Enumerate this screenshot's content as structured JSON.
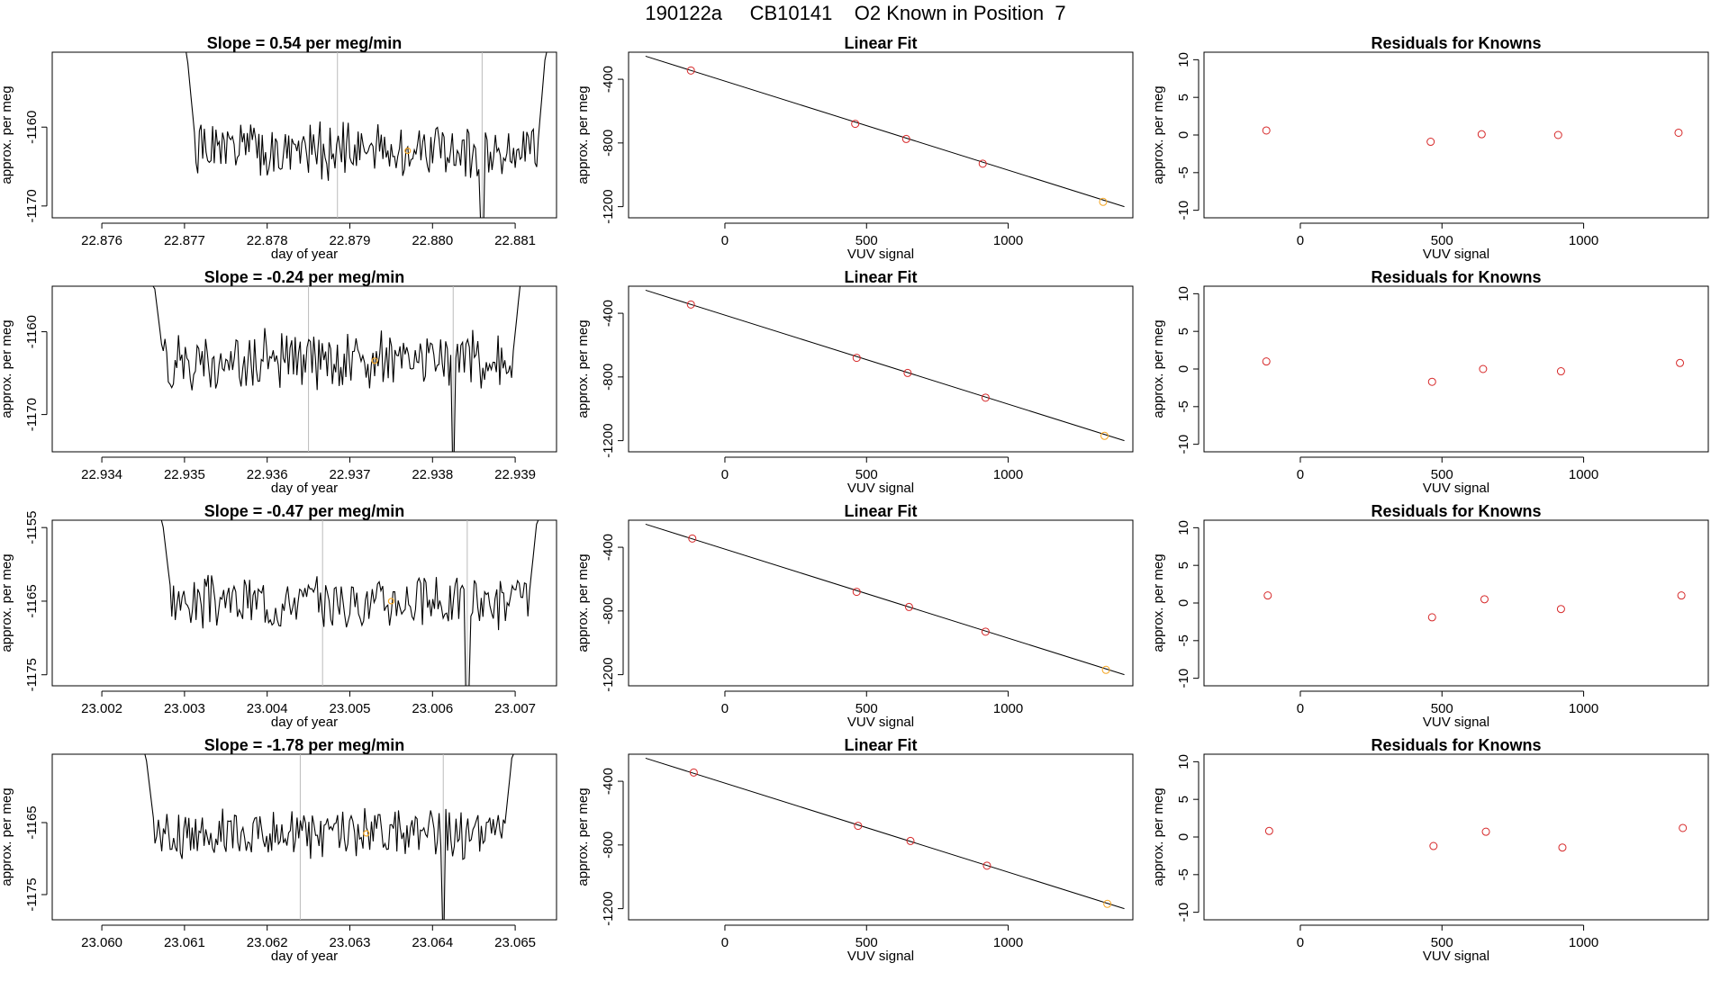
{
  "suptitle": "190122a     CB10141    O2 Known in Position  7",
  "colors": {
    "line": "#000000",
    "point": "#d62728",
    "known": "#f5a623",
    "marker": "#bbbbbb",
    "fit": "#000000"
  },
  "rows": [
    {
      "ts": {
        "type": "line",
        "title": "Slope =  0.54  per meg/min",
        "xlabel": "day of year",
        "ylabel": "approx. per meg",
        "xlim": [
          22.8754,
          22.8815
        ],
        "ylim": [
          -1171.5,
          -1150.5
        ],
        "xticks": [
          "22.876",
          "22.877",
          "22.878",
          "22.879",
          "22.880",
          "22.881"
        ],
        "yticks": [
          "-1160",
          "-1170"
        ],
        "t0": 22.877,
        "t1": 22.8814,
        "vlines": [
          22.87885,
          22.8806
        ],
        "orange_x": 22.8797,
        "base": -1163,
        "seed": 1
      },
      "fit": {
        "type": "line",
        "title": "Linear Fit",
        "xlabel": "VUV signal",
        "ylabel": "approx. per meg",
        "xlim": [
          -340,
          1440
        ],
        "ylim": [
          -1270,
          -230
        ],
        "xticks": [
          "0",
          "500",
          "1000"
        ],
        "yticks": [
          "-400",
          "-800",
          "-1200"
        ],
        "line": [
          [
            -280,
            -255
          ],
          [
            1410,
            -1200
          ]
        ],
        "points": [
          [
            -120,
            -345
          ],
          [
            460,
            -680
          ],
          [
            640,
            -775
          ],
          [
            910,
            -930
          ],
          [
            1335,
            -1170
          ]
        ],
        "known_index": 4
      },
      "res": {
        "type": "scatter",
        "title": "Residuals for Knowns",
        "xlabel": "VUV signal",
        "ylabel": "approx. per meg",
        "xlim": [
          -340,
          1440
        ],
        "ylim": [
          -11,
          11
        ],
        "xticks": [
          "0",
          "500",
          "1000"
        ],
        "yticks": [
          "10",
          "5",
          "0",
          "-5",
          "-10"
        ],
        "x": [
          -120,
          460,
          640,
          910,
          1335
        ],
        "y": [
          0.6,
          -0.9,
          0.1,
          0.0,
          0.3
        ]
      }
    },
    {
      "ts": {
        "type": "line",
        "title": "Slope =  -0.24  per meg/min",
        "xlabel": "day of year",
        "ylabel": "approx. per meg",
        "xlim": [
          22.9334,
          22.9395
        ],
        "ylim": [
          -1174.5,
          -1154.5
        ],
        "xticks": [
          "22.934",
          "22.935",
          "22.936",
          "22.937",
          "22.938",
          "22.939"
        ],
        "yticks": [
          "-1160",
          "-1170"
        ],
        "t0": 22.9346,
        "t1": 22.9391,
        "vlines": [
          22.9365,
          22.93825
        ],
        "orange_x": 22.9373,
        "base": -1163.5,
        "seed": 2
      },
      "fit": {
        "type": "line",
        "title": "Linear Fit",
        "xlabel": "VUV signal",
        "ylabel": "approx. per meg",
        "xlim": [
          -340,
          1440
        ],
        "ylim": [
          -1270,
          -230
        ],
        "xticks": [
          "0",
          "500",
          "1000"
        ],
        "yticks": [
          "-400",
          "-800",
          "-1200"
        ],
        "line": [
          [
            -280,
            -255
          ],
          [
            1410,
            -1200
          ]
        ],
        "points": [
          [
            -120,
            -345
          ],
          [
            465,
            -680
          ],
          [
            645,
            -775
          ],
          [
            920,
            -930
          ],
          [
            1340,
            -1170
          ]
        ],
        "known_index": 4
      },
      "res": {
        "type": "scatter",
        "title": "Residuals for Knowns",
        "xlabel": "VUV signal",
        "ylabel": "approx. per meg",
        "xlim": [
          -340,
          1440
        ],
        "ylim": [
          -11,
          11
        ],
        "xticks": [
          "0",
          "500",
          "1000"
        ],
        "yticks": [
          "10",
          "5",
          "0",
          "-5",
          "-10"
        ],
        "x": [
          -120,
          465,
          645,
          920,
          1340
        ],
        "y": [
          1.0,
          -1.7,
          0.0,
          -0.3,
          0.8
        ]
      }
    },
    {
      "ts": {
        "type": "line",
        "title": "Slope =  -0.47  per meg/min",
        "xlabel": "day of year",
        "ylabel": "approx. per meg",
        "xlim": [
          23.0014,
          23.0075
        ],
        "ylim": [
          -1176.5,
          -1154
        ],
        "xticks": [
          "23.002",
          "23.003",
          "23.004",
          "23.005",
          "23.006",
          "23.007"
        ],
        "yticks": [
          "-1155",
          "-1165",
          "-1175"
        ],
        "t0": 23.0027,
        "t1": 23.0073,
        "vlines": [
          23.00467,
          23.00642
        ],
        "orange_x": 23.0055,
        "base": -1165,
        "seed": 3
      },
      "fit": {
        "type": "line",
        "title": "Linear Fit",
        "xlabel": "VUV signal",
        "ylabel": "approx. per meg",
        "xlim": [
          -340,
          1440
        ],
        "ylim": [
          -1270,
          -230
        ],
        "xticks": [
          "0",
          "500",
          "1000"
        ],
        "yticks": [
          "-400",
          "-800",
          "-1200"
        ],
        "line": [
          [
            -280,
            -255
          ],
          [
            1410,
            -1200
          ]
        ],
        "points": [
          [
            -115,
            -345
          ],
          [
            465,
            -680
          ],
          [
            650,
            -775
          ],
          [
            920,
            -930
          ],
          [
            1345,
            -1170
          ]
        ],
        "known_index": 4
      },
      "res": {
        "type": "scatter",
        "title": "Residuals for Knowns",
        "xlabel": "VUV signal",
        "ylabel": "approx. per meg",
        "xlim": [
          -340,
          1440
        ],
        "ylim": [
          -11,
          11
        ],
        "xticks": [
          "0",
          "500",
          "1000"
        ],
        "yticks": [
          "10",
          "5",
          "0",
          "-5",
          "-10"
        ],
        "x": [
          -115,
          465,
          650,
          920,
          1345
        ],
        "y": [
          1.0,
          -1.9,
          0.5,
          -0.8,
          1.0
        ]
      }
    },
    {
      "ts": {
        "type": "line",
        "title": "Slope =  -1.78  per meg/min",
        "xlabel": "day of year",
        "ylabel": "approx. per meg",
        "xlim": [
          23.0594,
          23.0655
        ],
        "ylim": [
          -1178.5,
          -1155.5
        ],
        "xticks": [
          "23.060",
          "23.061",
          "23.062",
          "23.063",
          "23.064",
          "23.065"
        ],
        "yticks": [
          "-1165",
          "-1175"
        ],
        "t0": 23.0605,
        "t1": 23.065,
        "vlines": [
          23.0624,
          23.06413
        ],
        "orange_x": 23.0632,
        "base": -1166.5,
        "seed": 4
      },
      "fit": {
        "type": "line",
        "title": "Linear Fit",
        "xlabel": "VUV signal",
        "ylabel": "approx. per meg",
        "xlim": [
          -340,
          1440
        ],
        "ylim": [
          -1270,
          -230
        ],
        "xticks": [
          "0",
          "500",
          "1000"
        ],
        "yticks": [
          "-400",
          "-800",
          "-1200"
        ],
        "line": [
          [
            -280,
            -255
          ],
          [
            1410,
            -1200
          ]
        ],
        "points": [
          [
            -110,
            -345
          ],
          [
            470,
            -680
          ],
          [
            655,
            -775
          ],
          [
            925,
            -930
          ],
          [
            1350,
            -1170
          ]
        ],
        "known_index": 4
      },
      "res": {
        "type": "scatter",
        "title": "Residuals for Knowns",
        "xlabel": "VUV signal",
        "ylabel": "approx. per meg",
        "xlim": [
          -340,
          1440
        ],
        "ylim": [
          -11,
          11
        ],
        "xticks": [
          "0",
          "500",
          "1000"
        ],
        "yticks": [
          "10",
          "5",
          "0",
          "-5",
          "-10"
        ],
        "x": [
          -110,
          470,
          655,
          925,
          1350
        ],
        "y": [
          0.8,
          -1.2,
          0.7,
          -1.4,
          1.2
        ]
      }
    }
  ]
}
